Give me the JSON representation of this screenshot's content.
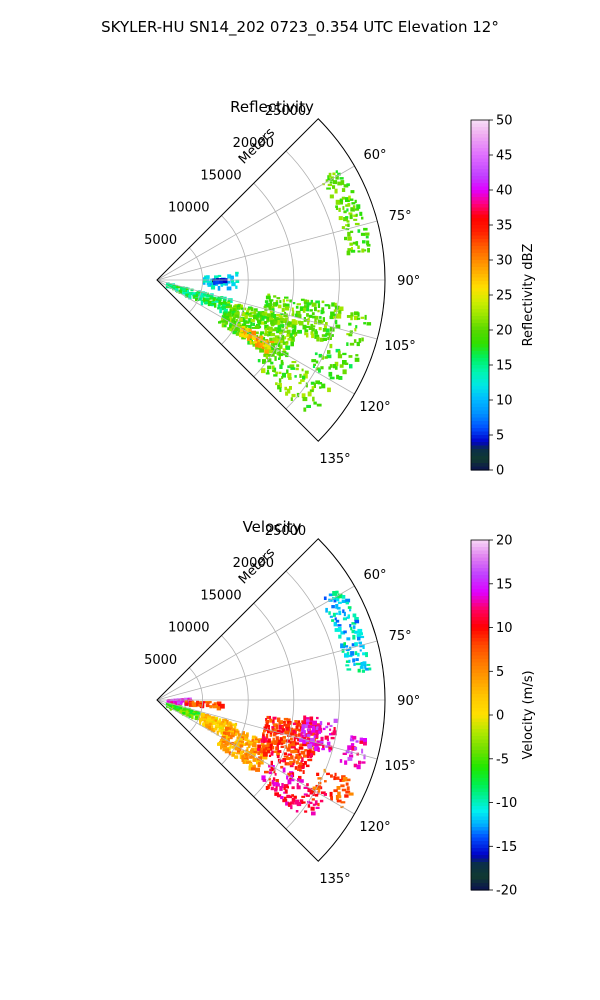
{
  "figure": {
    "suptitle": "SKYLER-HU  SN14_202  0723_0.354 UTC Elevation 12°"
  },
  "colors": {
    "grid": "#b0b0b0",
    "axes": "#000000",
    "background": "#ffffff"
  },
  "chart_data": [
    {
      "type": "heatmap",
      "subtype": "polar-sector (PPI radar scan)",
      "title": "Reflectivity",
      "radial_label": "Meters",
      "r_ticks": [
        5000,
        10000,
        15000,
        20000,
        25000
      ],
      "r_tick_labels": [
        "5000",
        "10000",
        "15000",
        "20000",
        "25000"
      ],
      "rlim": [
        0,
        25000
      ],
      "theta_ticks": [
        60,
        75,
        90,
        105,
        120,
        135
      ],
      "theta_tick_labels": [
        "60°",
        "75°",
        "90°",
        "105°",
        "120°",
        "135°"
      ],
      "thetalim": [
        45,
        135
      ],
      "colorbar": {
        "label": "Reflectivity dBZ",
        "range": [
          0,
          50
        ],
        "ticks": [
          0,
          5,
          10,
          15,
          20,
          25,
          30,
          35,
          40,
          45,
          50
        ],
        "tick_labels": [
          "0",
          "5",
          "10",
          "15",
          "20",
          "25",
          "30",
          "35",
          "40",
          "45",
          "50"
        ]
      },
      "echo_regions": [
        {
          "r": [
            1000,
            8000
          ],
          "theta": [
            104,
            116
          ],
          "value": 16,
          "density": 0.45
        },
        {
          "r": [
            5000,
            8500
          ],
          "theta": [
            84,
            96
          ],
          "value": 12,
          "density": 0.35
        },
        {
          "r": [
            8000,
            16000
          ],
          "theta": [
            106,
            124
          ],
          "value": 20,
          "density": 0.65
        },
        {
          "r": [
            10500,
            14000
          ],
          "theta": [
            118,
            123
          ],
          "value": 28,
          "density": 0.8
        },
        {
          "r": [
            12000,
            20000
          ],
          "theta": [
            97,
            110
          ],
          "value": 20,
          "density": 0.55
        },
        {
          "r": [
            14000,
            22000
          ],
          "theta": [
            121,
            131
          ],
          "value": 20,
          "density": 0.3
        },
        {
          "r": [
            21000,
            23500
          ],
          "theta": [
            58,
            82
          ],
          "value": 20,
          "density": 0.55
        },
        {
          "r": [
            21000,
            23500
          ],
          "theta": [
            99,
            108
          ],
          "value": 20,
          "density": 0.45
        },
        {
          "r": [
            19000,
            23500
          ],
          "theta": [
            110,
            119
          ],
          "value": 19,
          "density": 0.35
        },
        {
          "r": [
            6000,
            7500
          ],
          "theta": [
            88,
            91
          ],
          "value": 4,
          "density": 0.8
        }
      ]
    },
    {
      "type": "heatmap",
      "subtype": "polar-sector (PPI radar scan)",
      "title": "Velocity",
      "radial_label": "Meters",
      "r_ticks": [
        5000,
        10000,
        15000,
        20000,
        25000
      ],
      "r_tick_labels": [
        "5000",
        "10000",
        "15000",
        "20000",
        "25000"
      ],
      "rlim": [
        0,
        25000
      ],
      "theta_ticks": [
        60,
        75,
        90,
        105,
        120,
        135
      ],
      "theta_tick_labels": [
        "60°",
        "75°",
        "90°",
        "105°",
        "120°",
        "135°"
      ],
      "thetalim": [
        45,
        135
      ],
      "colorbar": {
        "label": "Velocity (m/s)",
        "range": [
          -20,
          20
        ],
        "ticks": [
          -20,
          -15,
          -10,
          -5,
          0,
          5,
          10,
          15,
          20
        ],
        "tick_labels": [
          "-20",
          "-15",
          "-10",
          "-5",
          "0",
          "5",
          "10",
          "15",
          "20"
        ]
      },
      "echo_regions": [
        {
          "r": [
            1000,
            3500
          ],
          "theta": [
            85,
            95
          ],
          "value": 15,
          "density": 0.75
        },
        {
          "r": [
            1000,
            4500
          ],
          "theta": [
            104,
            116
          ],
          "value": -5,
          "density": 0.5
        },
        {
          "r": [
            3000,
            7000
          ],
          "theta": [
            91,
            96
          ],
          "value": 8,
          "density": 0.6
        },
        {
          "r": [
            5000,
            9000
          ],
          "theta": [
            106,
            118
          ],
          "value": 2,
          "density": 0.7
        },
        {
          "r": [
            8000,
            13000
          ],
          "theta": [
            110,
            126
          ],
          "value": 4,
          "density": 0.75
        },
        {
          "r": [
            12000,
            18000
          ],
          "theta": [
            98,
            116
          ],
          "value": 9,
          "density": 0.75
        },
        {
          "r": [
            16000,
            19500
          ],
          "theta": [
            96,
            106
          ],
          "value": 14,
          "density": 0.65
        },
        {
          "r": [
            14000,
            21000
          ],
          "theta": [
            118,
            128
          ],
          "value": 11,
          "density": 0.45
        },
        {
          "r": [
            21000,
            23500
          ],
          "theta": [
            58,
            82
          ],
          "value": -11,
          "density": 0.55
        },
        {
          "r": [
            21000,
            23500
          ],
          "theta": [
            100,
            108
          ],
          "value": 14,
          "density": 0.5
        },
        {
          "r": [
            19000,
            23500
          ],
          "theta": [
            112,
            120
          ],
          "value": 7,
          "density": 0.35
        }
      ]
    }
  ]
}
